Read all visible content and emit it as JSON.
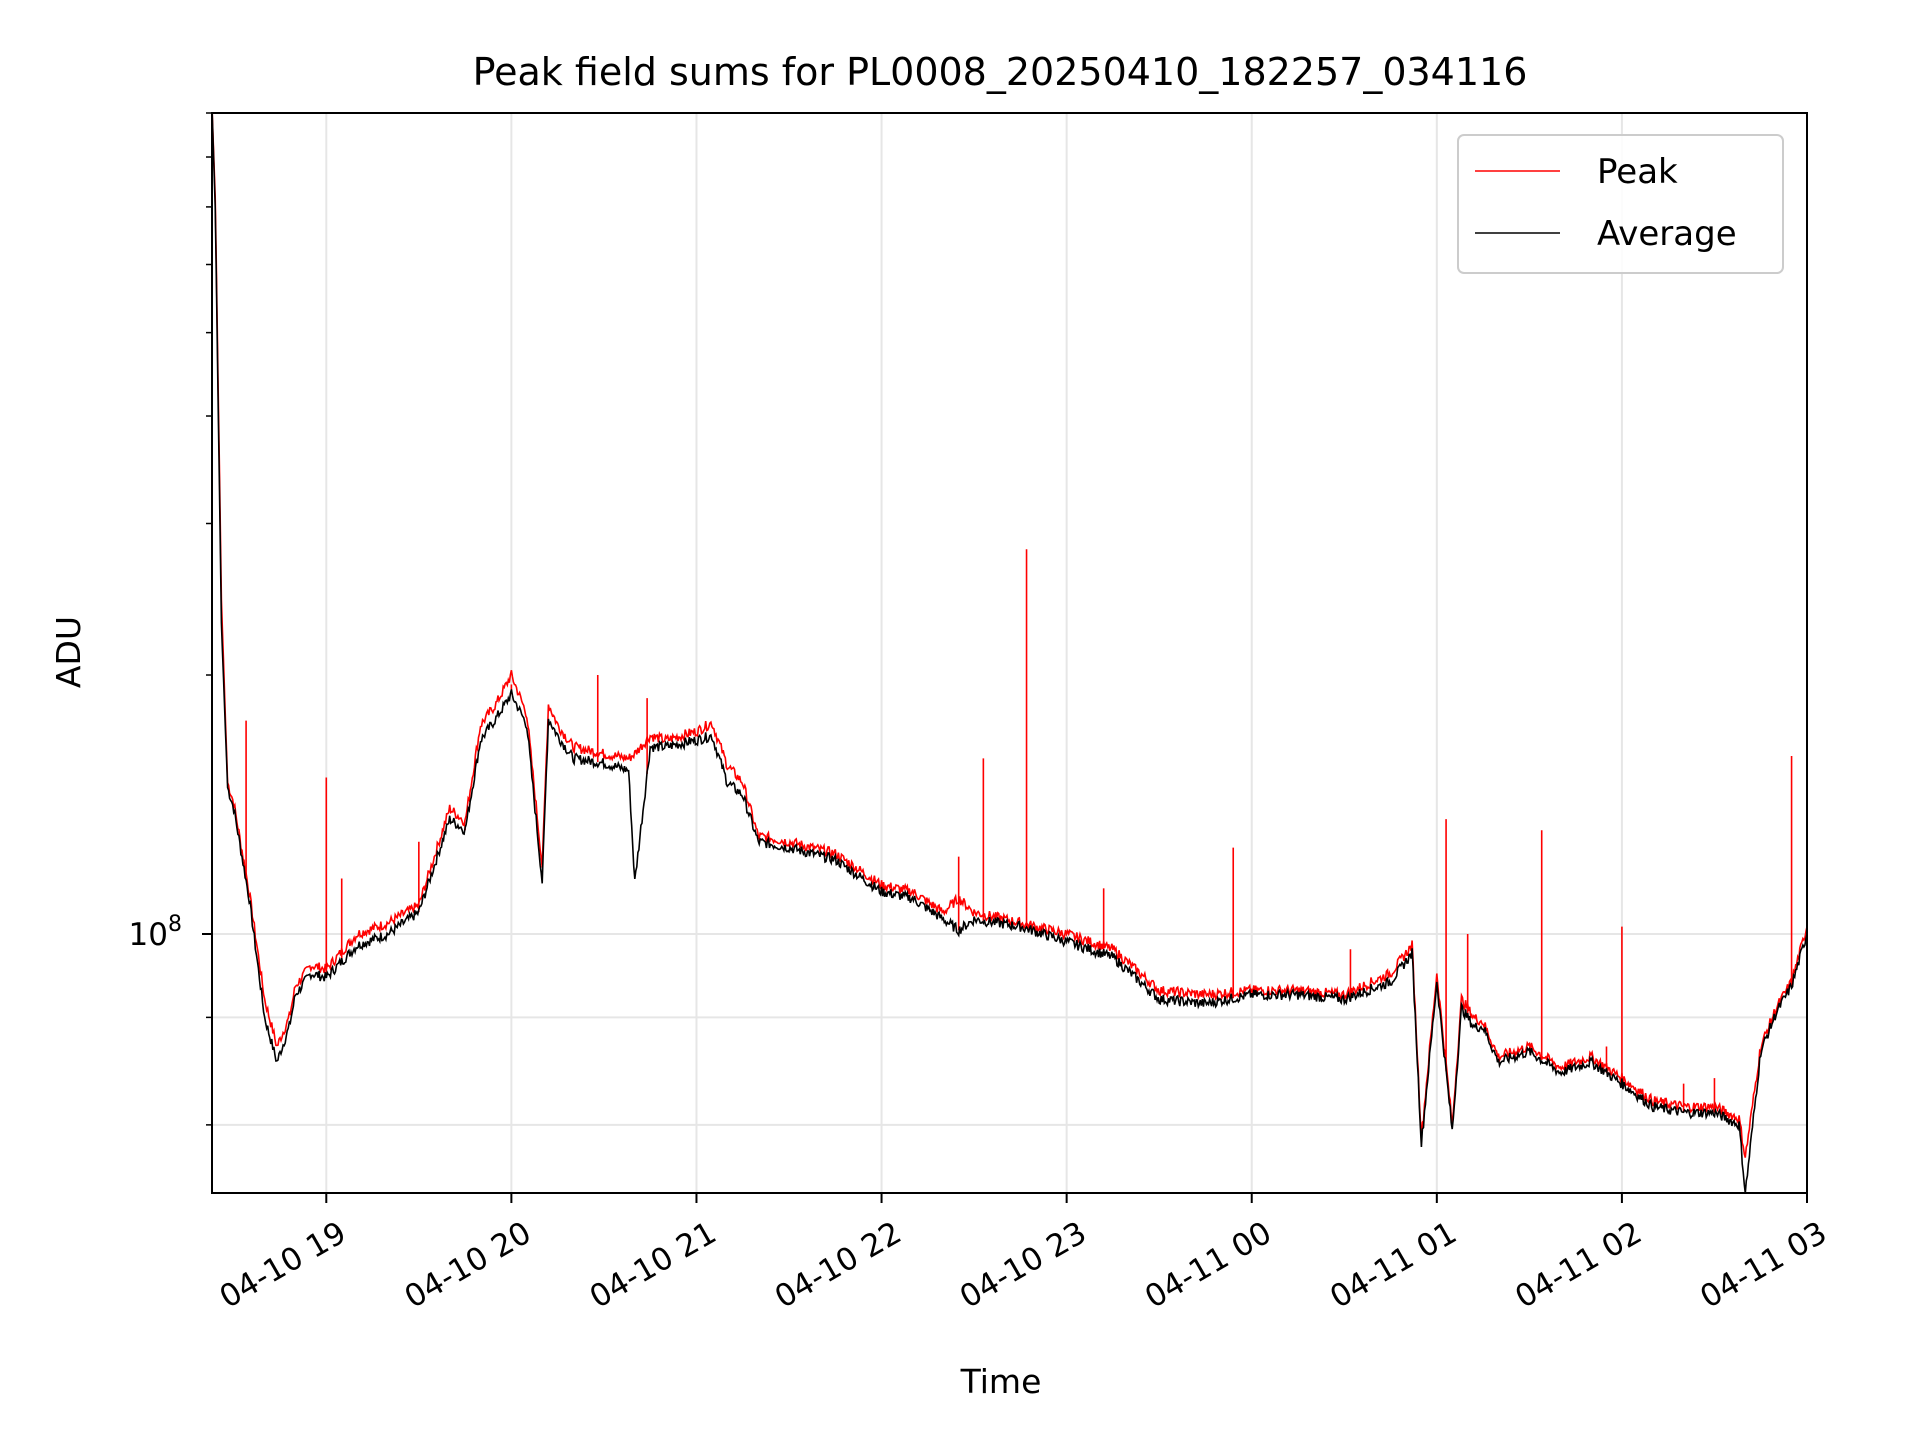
{
  "chart_data": {
    "type": "line",
    "title": "Peak field sums for PL0008_20250410_182257_034116",
    "xlabel": "Time",
    "ylabel": "ADU",
    "y_scale": "log",
    "xlim": [
      "2025-04-10 18:22:57",
      "2025-04-11 03:00:00"
    ],
    "ylim": [
      50000000,
      900000000
    ],
    "x_ticks": [
      "04-10 19",
      "04-10 20",
      "04-10 21",
      "04-10 22",
      "04-10 23",
      "04-11 00",
      "04-11 01",
      "04-11 02",
      "04-11 03"
    ],
    "y_tick_label_base": "10",
    "y_tick_label_exp": "8",
    "grid": true,
    "legend_position": "top-right",
    "series": [
      {
        "name": "Peak",
        "color": "#ff0000",
        "x": [
          "2025-04-10 18:23",
          "2025-04-10 18:24",
          "2025-04-10 18:26",
          "2025-04-10 18:28",
          "2025-04-10 18:30",
          "2025-04-10 18:35",
          "2025-04-10 18:40",
          "2025-04-10 18:44",
          "2025-04-10 18:48",
          "2025-04-10 18:50",
          "2025-04-10 18:55",
          "2025-04-10 19:00",
          "2025-04-10 19:10",
          "2025-04-10 19:20",
          "2025-04-10 19:30",
          "2025-04-10 19:40",
          "2025-04-10 19:45",
          "2025-04-10 19:50",
          "2025-04-10 19:55",
          "2025-04-10 20:00",
          "2025-04-10 20:05",
          "2025-04-10 20:10",
          "2025-04-10 20:12",
          "2025-04-10 20:15",
          "2025-04-10 20:20",
          "2025-04-10 20:30",
          "2025-04-10 20:38",
          "2025-04-10 20:40",
          "2025-04-10 20:45",
          "2025-04-10 20:50",
          "2025-04-10 21:00",
          "2025-04-10 21:05",
          "2025-04-10 21:10",
          "2025-04-10 21:15",
          "2025-04-10 21:20",
          "2025-04-10 21:25",
          "2025-04-10 21:30",
          "2025-04-10 21:45",
          "2025-04-10 22:00",
          "2025-04-10 22:10",
          "2025-04-10 22:20",
          "2025-04-10 22:25",
          "2025-04-10 22:30",
          "2025-04-10 22:45",
          "2025-04-10 23:00",
          "2025-04-10 23:15",
          "2025-04-10 23:30",
          "2025-04-10 23:45",
          "2025-04-11 00:00",
          "2025-04-11 00:15",
          "2025-04-11 00:30",
          "2025-04-11 00:45",
          "2025-04-11 00:52",
          "2025-04-11 00:55",
          "2025-04-11 01:00",
          "2025-04-11 01:05",
          "2025-04-11 01:08",
          "2025-04-11 01:12",
          "2025-04-11 01:15",
          "2025-04-11 01:20",
          "2025-04-11 01:30",
          "2025-04-11 01:40",
          "2025-04-11 01:50",
          "2025-04-11 02:00",
          "2025-04-11 02:10",
          "2025-04-11 02:20",
          "2025-04-11 02:30",
          "2025-04-11 02:38",
          "2025-04-11 02:40",
          "2025-04-11 02:45",
          "2025-04-11 02:50",
          "2025-04-11 02:55",
          "2025-04-11 03:00"
        ],
        "y": [
          900000000,
          720000000,
          245000000,
          150000000,
          142000000,
          112000000,
          84000000,
          74000000,
          80000000,
          87000000,
          92000000,
          91000000,
          100000000,
          103000000,
          108000000,
          140000000,
          135000000,
          175000000,
          185000000,
          200000000,
          180000000,
          120000000,
          185000000,
          175000000,
          165000000,
          162000000,
          160000000,
          162000000,
          170000000,
          168000000,
          172000000,
          176000000,
          157000000,
          150000000,
          130000000,
          129000000,
          128000000,
          124000000,
          114000000,
          112000000,
          106000000,
          110000000,
          106000000,
          103000000,
          100000000,
          96000000,
          86000000,
          85000000,
          86000000,
          86000000,
          85000000,
          90000000,
          97000000,
          58000000,
          90000000,
          60000000,
          84000000,
          80000000,
          79000000,
          72000000,
          74000000,
          70000000,
          72000000,
          68000000,
          64000000,
          63000000,
          63000000,
          61000000,
          55000000,
          74000000,
          82000000,
          88000000,
          102000000
        ],
        "spikes": [
          {
            "x": "2025-04-10 18:34",
            "y": 177000000
          },
          {
            "x": "2025-04-10 19:00",
            "y": 152000000
          },
          {
            "x": "2025-04-10 19:05",
            "y": 116000000
          },
          {
            "x": "2025-04-10 19:30",
            "y": 128000000
          },
          {
            "x": "2025-04-10 19:45",
            "y": 134000000
          },
          {
            "x": "2025-04-10 20:00",
            "y": 195000000
          },
          {
            "x": "2025-04-10 20:28",
            "y": 200000000
          },
          {
            "x": "2025-04-10 20:44",
            "y": 188000000
          },
          {
            "x": "2025-04-10 22:25",
            "y": 123000000
          },
          {
            "x": "2025-04-10 22:33",
            "y": 160000000
          },
          {
            "x": "2025-04-10 22:47",
            "y": 280000000
          },
          {
            "x": "2025-04-10 23:12",
            "y": 113000000
          },
          {
            "x": "2025-04-10 23:54",
            "y": 126000000
          },
          {
            "x": "2025-04-11 00:32",
            "y": 96000000
          },
          {
            "x": "2025-04-11 01:03",
            "y": 136000000
          },
          {
            "x": "2025-04-11 01:10",
            "y": 100000000
          },
          {
            "x": "2025-04-11 01:34",
            "y": 132000000
          },
          {
            "x": "2025-04-11 01:55",
            "y": 74000000
          },
          {
            "x": "2025-04-11 02:00",
            "y": 102000000
          },
          {
            "x": "2025-04-11 02:20",
            "y": 67000000
          },
          {
            "x": "2025-04-11 02:30",
            "y": 68000000
          },
          {
            "x": "2025-04-11 02:45",
            "y": 73000000
          },
          {
            "x": "2025-04-11 02:55",
            "y": 161000000
          }
        ]
      },
      {
        "name": "Average",
        "color": "#000000",
        "x": [
          "2025-04-10 18:23",
          "2025-04-10 18:24",
          "2025-04-10 18:26",
          "2025-04-10 18:28",
          "2025-04-10 18:30",
          "2025-04-10 18:35",
          "2025-04-10 18:40",
          "2025-04-10 18:44",
          "2025-04-10 18:48",
          "2025-04-10 18:50",
          "2025-04-10 18:55",
          "2025-04-10 19:00",
          "2025-04-10 19:10",
          "2025-04-10 19:20",
          "2025-04-10 19:30",
          "2025-04-10 19:40",
          "2025-04-10 19:45",
          "2025-04-10 19:50",
          "2025-04-10 19:55",
          "2025-04-10 20:00",
          "2025-04-10 20:05",
          "2025-04-10 20:10",
          "2025-04-10 20:12",
          "2025-04-10 20:15",
          "2025-04-10 20:20",
          "2025-04-10 20:30",
          "2025-04-10 20:38",
          "2025-04-10 20:40",
          "2025-04-10 20:45",
          "2025-04-10 20:50",
          "2025-04-10 21:00",
          "2025-04-10 21:05",
          "2025-04-10 21:10",
          "2025-04-10 21:15",
          "2025-04-10 21:20",
          "2025-04-10 21:25",
          "2025-04-10 21:30",
          "2025-04-10 21:45",
          "2025-04-10 22:00",
          "2025-04-10 22:10",
          "2025-04-10 22:20",
          "2025-04-10 22:25",
          "2025-04-10 22:30",
          "2025-04-10 22:45",
          "2025-04-10 23:00",
          "2025-04-10 23:15",
          "2025-04-10 23:30",
          "2025-04-10 23:45",
          "2025-04-11 00:00",
          "2025-04-11 00:15",
          "2025-04-11 00:30",
          "2025-04-11 00:45",
          "2025-04-11 00:52",
          "2025-04-11 00:55",
          "2025-04-11 01:00",
          "2025-04-11 01:05",
          "2025-04-11 01:08",
          "2025-04-11 01:12",
          "2025-04-11 01:15",
          "2025-04-11 01:20",
          "2025-04-11 01:30",
          "2025-04-11 01:40",
          "2025-04-11 01:50",
          "2025-04-11 02:00",
          "2025-04-11 02:10",
          "2025-04-11 02:20",
          "2025-04-11 02:30",
          "2025-04-11 02:38",
          "2025-04-11 02:40",
          "2025-04-11 02:45",
          "2025-04-11 02:50",
          "2025-04-11 02:55",
          "2025-04-11 03:00"
        ],
        "y": [
          900000000,
          700000000,
          230000000,
          148000000,
          140000000,
          110000000,
          80000000,
          71000000,
          78000000,
          85000000,
          90000000,
          89000000,
          97000000,
          100000000,
          106000000,
          136000000,
          132000000,
          168000000,
          178000000,
          190000000,
          175000000,
          115000000,
          178000000,
          170000000,
          160000000,
          158000000,
          155000000,
          115000000,
          165000000,
          165000000,
          168000000,
          170000000,
          150000000,
          145000000,
          128000000,
          127000000,
          126000000,
          122000000,
          112000000,
          110000000,
          104000000,
          101000000,
          104000000,
          102000000,
          98000000,
          94000000,
          84000000,
          83000000,
          85000000,
          85000000,
          84000000,
          88000000,
          95000000,
          57000000,
          88000000,
          59000000,
          82000000,
          78000000,
          78000000,
          71000000,
          73000000,
          69000000,
          71000000,
          67000000,
          63000000,
          62000000,
          62000000,
          60000000,
          50000000,
          73000000,
          81000000,
          87000000,
          100000000
        ]
      }
    ]
  }
}
